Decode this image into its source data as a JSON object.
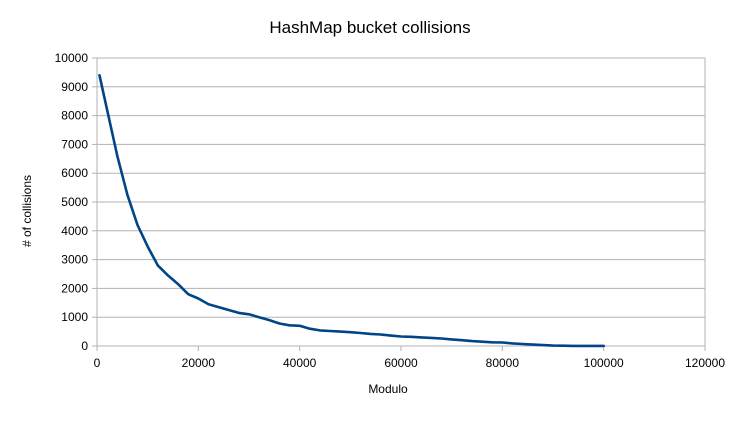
{
  "chart_data": {
    "type": "line",
    "title": "HashMap bucket collisions",
    "xlabel": "Modulo",
    "ylabel": "# of collisions",
    "xlim": [
      0,
      120000
    ],
    "ylim": [
      0,
      10000
    ],
    "xticks": [
      0,
      20000,
      40000,
      60000,
      80000,
      100000,
      120000
    ],
    "yticks": [
      0,
      1000,
      2000,
      3000,
      4000,
      5000,
      6000,
      7000,
      8000,
      9000,
      10000
    ],
    "grid": true,
    "legend": "none",
    "colors": {
      "line": "#004586",
      "grid": "#b3b3b3",
      "axis": "#b3b3b3"
    },
    "series": [
      {
        "x": [
          500,
          2000,
          4000,
          6000,
          8000,
          10000,
          12000,
          14000,
          16000,
          18000,
          20000,
          22000,
          24000,
          26000,
          28000,
          30000,
          32000,
          34000,
          36000,
          38000,
          40000,
          42000,
          44000,
          46000,
          48000,
          50000,
          52000,
          54000,
          56000,
          58000,
          60000,
          62000,
          64000,
          66000,
          68000,
          70000,
          72000,
          74000,
          76000,
          78000,
          80000,
          82000,
          84000,
          86000,
          88000,
          90000,
          92000,
          94000,
          96000,
          98000,
          100000
        ],
        "values": [
          9400,
          8200,
          6600,
          5250,
          4200,
          3450,
          2800,
          2450,
          2150,
          1800,
          1650,
          1450,
          1350,
          1250,
          1150,
          1100,
          1000,
          900,
          780,
          720,
          700,
          600,
          540,
          520,
          500,
          480,
          450,
          420,
          400,
          360,
          330,
          320,
          300,
          280,
          260,
          230,
          200,
          170,
          150,
          130,
          120,
          90,
          70,
          50,
          30,
          15,
          10,
          5,
          5,
          5,
          5
        ]
      }
    ]
  }
}
